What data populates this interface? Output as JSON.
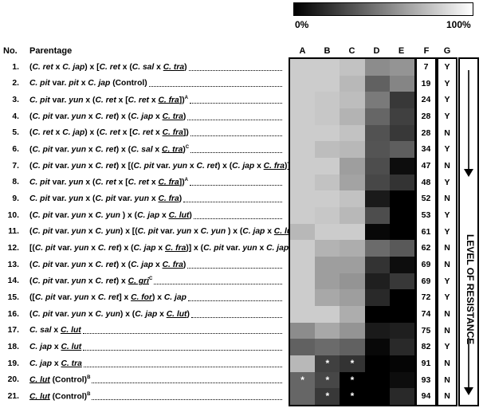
{
  "legend": {
    "min_label": "0%",
    "max_label": "100%",
    "colors": [
      "#000000",
      "#ffffff"
    ]
  },
  "headers": {
    "no": "No.",
    "parentage": "Parentage",
    "A": "A",
    "B": "B",
    "C": "C",
    "D": "D",
    "E": "E",
    "F": "F",
    "G": "G"
  },
  "side_label": "LEVEL OF RESISTANCE",
  "rows": [
    {
      "no": "1.",
      "parentage": [
        [
          "(",
          "n"
        ],
        [
          "C. ret",
          "i"
        ],
        [
          " x ",
          "n"
        ],
        [
          "C. jap",
          "i"
        ],
        [
          ") x [",
          "n"
        ],
        [
          "C. ret",
          "i"
        ],
        [
          " x (",
          "n"
        ],
        [
          "C. sal",
          "i"
        ],
        [
          " x ",
          "n"
        ],
        [
          "C. tra",
          "u"
        ],
        [
          ")",
          "n"
        ]
      ]
    },
    {
      "no": "2.",
      "parentage": [
        [
          "C. pit",
          "i"
        ],
        [
          " var. ",
          "n"
        ],
        [
          "pit",
          "i"
        ],
        [
          " x ",
          "n"
        ],
        [
          "C. jap",
          "i"
        ],
        [
          " (Control)",
          "n"
        ]
      ]
    },
    {
      "no": "3.",
      "parentage": [
        [
          "C. pit",
          "i"
        ],
        [
          " var. ",
          "n"
        ],
        [
          "yun",
          "i"
        ],
        [
          " x (",
          "n"
        ],
        [
          "C. ret",
          "i"
        ],
        [
          " x [",
          "n"
        ],
        [
          "C. ret",
          "i"
        ],
        [
          " x ",
          "n"
        ],
        [
          "C. fra",
          "u"
        ],
        [
          "])",
          "n"
        ],
        [
          "A",
          "s"
        ]
      ]
    },
    {
      "no": "4.",
      "parentage": [
        [
          "(",
          "n"
        ],
        [
          "C. pit",
          "i"
        ],
        [
          " var. ",
          "n"
        ],
        [
          "yun",
          "i"
        ],
        [
          " x ",
          "n"
        ],
        [
          "C. ret",
          "i"
        ],
        [
          ") x (",
          "n"
        ],
        [
          "C. jap",
          "i"
        ],
        [
          " x ",
          "n"
        ],
        [
          "C. tra",
          "u"
        ],
        [
          ")",
          "n"
        ]
      ]
    },
    {
      "no": "5.",
      "parentage": [
        [
          "(",
          "n"
        ],
        [
          "C. ret",
          "i"
        ],
        [
          " x ",
          "n"
        ],
        [
          "C. jap",
          "i"
        ],
        [
          ") x (",
          "n"
        ],
        [
          "C. ret",
          "i"
        ],
        [
          " x [",
          "n"
        ],
        [
          "C. ret",
          "i"
        ],
        [
          " x ",
          "n"
        ],
        [
          "C. fra",
          "u"
        ],
        [
          "])",
          "n"
        ]
      ]
    },
    {
      "no": "6.",
      "parentage": [
        [
          "(",
          "n"
        ],
        [
          "C. pit",
          "i"
        ],
        [
          " var. ",
          "n"
        ],
        [
          "yun",
          "i"
        ],
        [
          " x ",
          "n"
        ],
        [
          "C. ret",
          "i"
        ],
        [
          ") x (",
          "n"
        ],
        [
          "C. sal",
          "i"
        ],
        [
          " x ",
          "n"
        ],
        [
          "C. tra",
          "u"
        ],
        [
          ")",
          "n"
        ],
        [
          "C",
          "s"
        ]
      ]
    },
    {
      "no": "7.",
      "parentage": [
        [
          "(",
          "n"
        ],
        [
          "C. pit",
          "i"
        ],
        [
          " var. ",
          "n"
        ],
        [
          "yun",
          "i"
        ],
        [
          " x ",
          "n"
        ],
        [
          "C. ret",
          "i"
        ],
        [
          ") x [(",
          "n"
        ],
        [
          "C. pit",
          "i"
        ],
        [
          " var. ",
          "n"
        ],
        [
          "yun",
          "i"
        ],
        [
          " x ",
          "n"
        ],
        [
          "C. ret",
          "i"
        ],
        [
          ") x (",
          "n"
        ],
        [
          "C. jap",
          "i"
        ],
        [
          " x ",
          "n"
        ],
        [
          "C. fra",
          "u"
        ],
        [
          ")]",
          "n"
        ]
      ]
    },
    {
      "no": "8.",
      "parentage": [
        [
          "C. pit",
          "i"
        ],
        [
          " var. ",
          "n"
        ],
        [
          "yun",
          "i"
        ],
        [
          " x (",
          "n"
        ],
        [
          "C. ret",
          "i"
        ],
        [
          " x [",
          "n"
        ],
        [
          "C. ret",
          "i"
        ],
        [
          " x ",
          "n"
        ],
        [
          "C. fra",
          "u"
        ],
        [
          "])",
          "n"
        ],
        [
          "A",
          "s"
        ]
      ]
    },
    {
      "no": "9.",
      "parentage": [
        [
          "C. pit",
          "i"
        ],
        [
          " var. ",
          "n"
        ],
        [
          "yun",
          "i"
        ],
        [
          " x (",
          "n"
        ],
        [
          "C. pit",
          "i"
        ],
        [
          " var. ",
          "n"
        ],
        [
          "yun",
          "i"
        ],
        [
          " x ",
          "n"
        ],
        [
          "C. fra",
          "u"
        ],
        [
          ")",
          "n"
        ]
      ]
    },
    {
      "no": "10.",
      "parentage": [
        [
          "(",
          "n"
        ],
        [
          "C. pit",
          "i"
        ],
        [
          " var. ",
          "n"
        ],
        [
          "yun",
          "i"
        ],
        [
          " x ",
          "n"
        ],
        [
          "C. yun",
          "i"
        ],
        [
          " ) x (",
          "n"
        ],
        [
          "C. jap",
          "i"
        ],
        [
          " x ",
          "n"
        ],
        [
          "C. lut",
          "u"
        ],
        [
          ")",
          "n"
        ]
      ]
    },
    {
      "no": "11.",
      "parentage": [
        [
          "(",
          "n"
        ],
        [
          "C. pit",
          "i"
        ],
        [
          " var. ",
          "n"
        ],
        [
          "yun",
          "i"
        ],
        [
          " x ",
          "n"
        ],
        [
          "C. yun",
          "i"
        ],
        [
          ") x [(",
          "n"
        ],
        [
          "C. pit",
          "i"
        ],
        [
          " var. ",
          "n"
        ],
        [
          "yun",
          "i"
        ],
        [
          " x ",
          "n"
        ],
        [
          "C. yun",
          "i"
        ],
        [
          " ) x (",
          "n"
        ],
        [
          "C. jap",
          "i"
        ],
        [
          " x ",
          "n"
        ],
        [
          "C. lut",
          "u"
        ],
        [
          ")]",
          "n"
        ]
      ]
    },
    {
      "no": "12.",
      "parentage": [
        [
          "[(",
          "n"
        ],
        [
          "C. pit",
          "i"
        ],
        [
          " var. ",
          "n"
        ],
        [
          "yun",
          "i"
        ],
        [
          " x ",
          "n"
        ],
        [
          "C. ret",
          "i"
        ],
        [
          ") x (",
          "n"
        ],
        [
          "C. jap",
          "i"
        ],
        [
          " x ",
          "n"
        ],
        [
          "C. fra",
          "u"
        ],
        [
          ")] x (",
          "n"
        ],
        [
          "C. pit",
          "i"
        ],
        [
          " var. ",
          "n"
        ],
        [
          "yun",
          "i"
        ],
        [
          " x ",
          "n"
        ],
        [
          "C. jap",
          "i"
        ],
        [
          ")",
          "n"
        ]
      ]
    },
    {
      "no": "13.",
      "parentage": [
        [
          "(",
          "n"
        ],
        [
          "C. pit",
          "i"
        ],
        [
          " var. ",
          "n"
        ],
        [
          "yun",
          "i"
        ],
        [
          " x ",
          "n"
        ],
        [
          "C. ret",
          "i"
        ],
        [
          ") x (",
          "n"
        ],
        [
          "C. jap",
          "i"
        ],
        [
          " x ",
          "n"
        ],
        [
          "C. fra",
          "u"
        ],
        [
          ")",
          "n"
        ]
      ]
    },
    {
      "no": "14.",
      "parentage": [
        [
          "(",
          "n"
        ],
        [
          "C. pit",
          "i"
        ],
        [
          " var. ",
          "n"
        ],
        [
          "yun",
          "i"
        ],
        [
          " x ",
          "n"
        ],
        [
          "C. ret",
          "i"
        ],
        [
          ") x ",
          "n"
        ],
        [
          "C. gri",
          "u"
        ],
        [
          "C",
          "s"
        ]
      ]
    },
    {
      "no": "15.",
      "parentage": [
        [
          "([",
          "n"
        ],
        [
          "C. pit",
          "i"
        ],
        [
          " var. ",
          "n"
        ],
        [
          "yun",
          "i"
        ],
        [
          " x ",
          "n"
        ],
        [
          "C. ret",
          "i"
        ],
        [
          "] x ",
          "n"
        ],
        [
          "C. for",
          "u"
        ],
        [
          ") x ",
          "n"
        ],
        [
          "C. jap",
          "i"
        ]
      ]
    },
    {
      "no": "16.",
      "parentage": [
        [
          "(",
          "n"
        ],
        [
          "C. pit",
          "i"
        ],
        [
          " var. ",
          "n"
        ],
        [
          "yun",
          "i"
        ],
        [
          " x ",
          "n"
        ],
        [
          "C. yun",
          "i"
        ],
        [
          ") x (",
          "n"
        ],
        [
          "C. jap",
          "i"
        ],
        [
          " x ",
          "n"
        ],
        [
          "C. lut",
          "u"
        ],
        [
          ")",
          "n"
        ]
      ]
    },
    {
      "no": "17.",
      "parentage": [
        [
          "C. sal",
          "i"
        ],
        [
          " x ",
          "n"
        ],
        [
          "C. lut",
          "u"
        ]
      ]
    },
    {
      "no": "18.",
      "parentage": [
        [
          "C. jap",
          "i"
        ],
        [
          " x ",
          "n"
        ],
        [
          "C. lut",
          "u"
        ]
      ]
    },
    {
      "no": "19.",
      "parentage": [
        [
          "C. jap",
          "i"
        ],
        [
          " x ",
          "n"
        ],
        [
          "C. tra",
          "u"
        ]
      ]
    },
    {
      "no": "20.",
      "parentage": [
        [
          "C. lut",
          "u"
        ],
        [
          " (Control)",
          "n"
        ],
        [
          "B",
          "s"
        ]
      ]
    },
    {
      "no": "21.",
      "parentage": [
        [
          "C. lut",
          "u"
        ],
        [
          " (Control)",
          "n"
        ],
        [
          "B",
          "s"
        ]
      ]
    }
  ],
  "chart_data": {
    "type": "heatmap",
    "columns": [
      "A",
      "B",
      "C",
      "D",
      "E"
    ],
    "scale": {
      "min": 0,
      "max": 100,
      "unit": "%",
      "colors": [
        "#000000",
        "#ffffff"
      ]
    },
    "values": [
      [
        80,
        80,
        76,
        55,
        58
      ],
      [
        80,
        80,
        72,
        38,
        52
      ],
      [
        80,
        78,
        74,
        48,
        22
      ],
      [
        80,
        78,
        70,
        40,
        25
      ],
      [
        80,
        80,
        76,
        32,
        22
      ],
      [
        80,
        74,
        72,
        33,
        37
      ],
      [
        80,
        80,
        62,
        30,
        5
      ],
      [
        80,
        76,
        64,
        28,
        20
      ],
      [
        80,
        80,
        76,
        10,
        0
      ],
      [
        80,
        78,
        72,
        30,
        0
      ],
      [
        72,
        80,
        80,
        3,
        0
      ],
      [
        80,
        70,
        68,
        42,
        35
      ],
      [
        80,
        62,
        62,
        20,
        5
      ],
      [
        80,
        62,
        58,
        12,
        22
      ],
      [
        80,
        66,
        62,
        16,
        0
      ],
      [
        80,
        80,
        68,
        0,
        0
      ],
      [
        55,
        66,
        58,
        10,
        12
      ],
      [
        38,
        42,
        38,
        3,
        16
      ],
      [
        72,
        25,
        20,
        0,
        2
      ],
      [
        40,
        28,
        0,
        0,
        5
      ],
      [
        40,
        22,
        0,
        0,
        16
      ]
    ],
    "asterisks": [
      [
        18,
        1
      ],
      [
        18,
        2
      ],
      [
        19,
        0
      ],
      [
        19,
        1
      ],
      [
        19,
        2
      ],
      [
        20,
        1
      ],
      [
        20,
        2
      ]
    ],
    "asterisk_symbol": "*",
    "F": [
      "7",
      "19",
      "24",
      "28",
      "28",
      "34",
      "47",
      "48",
      "52",
      "53",
      "61",
      "62",
      "69",
      "69",
      "72",
      "74",
      "75",
      "82",
      "91",
      "93",
      "94"
    ],
    "G": [
      "Y",
      "Y",
      "Y",
      "Y",
      "N",
      "Y",
      "N",
      "Y",
      "N",
      "Y",
      "Y",
      "N",
      "N",
      "Y",
      "Y",
      "N",
      "N",
      "Y",
      "N",
      "N",
      "N"
    ]
  }
}
